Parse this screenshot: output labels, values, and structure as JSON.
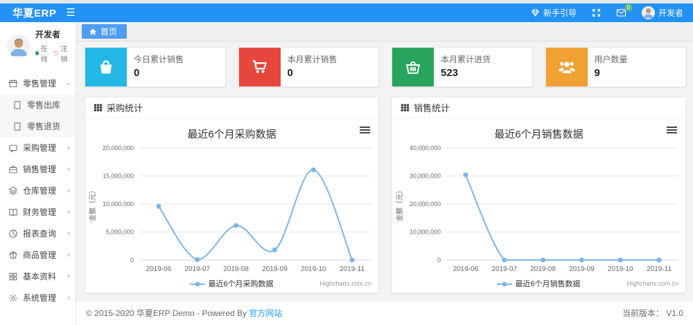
{
  "topbar": {
    "logo": "华夏ERP",
    "guide_label": "新手引导",
    "message_badge": "0",
    "username": "开发者"
  },
  "sidebar": {
    "user_name": "开发者",
    "status_online": "在线",
    "logout_label": "注销",
    "menu": [
      {
        "label": "零售管理",
        "icon": "store-icon",
        "expanded": true
      },
      {
        "label": "零售出库",
        "icon": "doc-icon",
        "sub": true
      },
      {
        "label": "零售退货",
        "icon": "doc-icon",
        "sub": true
      },
      {
        "label": "采购管理",
        "icon": "purchase-icon"
      },
      {
        "label": "销售管理",
        "icon": "briefcase-icon"
      },
      {
        "label": "仓库管理",
        "icon": "layers-icon"
      },
      {
        "label": "财务管理",
        "icon": "book-icon"
      },
      {
        "label": "报表查询",
        "icon": "report-icon"
      },
      {
        "label": "商品管理",
        "icon": "goods-icon"
      },
      {
        "label": "基本资料",
        "icon": "grid-icon"
      },
      {
        "label": "系统管理",
        "icon": "gear-icon"
      }
    ]
  },
  "tabs": {
    "home": "首页"
  },
  "stat_cards": [
    {
      "label": "今日累计销售",
      "value": "0",
      "color": "#23b7e5",
      "icon": "shopping-bag-icon"
    },
    {
      "label": "本月累计销售",
      "value": "0",
      "color": "#e7463c",
      "icon": "cart-icon"
    },
    {
      "label": "本月累计进货",
      "value": "523",
      "color": "#28a45c",
      "icon": "basket-icon"
    },
    {
      "label": "用户数量",
      "value": "9",
      "color": "#f0a131",
      "icon": "users-icon"
    }
  ],
  "panels": [
    {
      "header": "采购统计"
    },
    {
      "header": "销售统计"
    }
  ],
  "chart_data": [
    {
      "type": "line",
      "title": "最近6个月采购数据",
      "x": [
        "2019-06",
        "2019-07",
        "2019-08",
        "2019-09",
        "2019-10",
        "2019-11"
      ],
      "series": [
        {
          "name": "最近6个月采购数据",
          "values": [
            9600000,
            60000,
            6150000,
            1800000,
            16100000,
            0
          ]
        }
      ],
      "ylabel": "金额（元）",
      "ylim": [
        0,
        20000000
      ],
      "yticks": [
        0,
        5000000,
        10000000,
        15000000,
        20000000
      ],
      "line_color": "#7cb5ec",
      "grid": true,
      "legend_position": "bottom",
      "credits": "Highcharts.com.cn"
    },
    {
      "type": "line",
      "title": "最近6个月销售数据",
      "x": [
        "2019-06",
        "2019-07",
        "2019-08",
        "2019-09",
        "2019-10",
        "2019-11"
      ],
      "series": [
        {
          "name": "最近6个月销售数据",
          "values": [
            30400000,
            0,
            0,
            0,
            0,
            0
          ]
        }
      ],
      "ylabel": "金额（元）",
      "ylim": [
        0,
        40000000
      ],
      "yticks": [
        0,
        10000000,
        20000000,
        30000000,
        40000000
      ],
      "line_color": "#7cb5ec",
      "grid": true,
      "legend_position": "bottom",
      "credits": "Highcharts.com.cn"
    }
  ],
  "footer": {
    "copyright": "© 2015-2020 华夏ERP Demo - Powered By ",
    "link": "官方网站",
    "version_label": "当前版本：",
    "version": "V1.0"
  }
}
